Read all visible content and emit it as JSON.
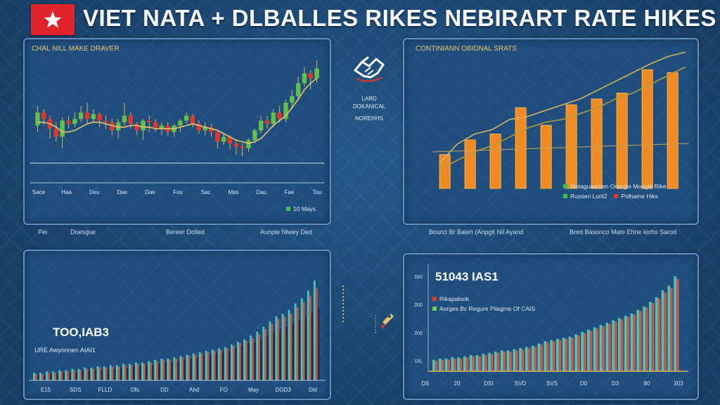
{
  "header": {
    "title": "VIET NATA + DLBALLES RIKES NEBIRART RATE HIKES",
    "flag_colors": {
      "bg": "#e0242b",
      "star": "#ffffff"
    }
  },
  "center_block": {
    "lines": [
      "LARD",
      "DOKANICAL",
      "NOREHHS"
    ]
  },
  "chart_data": [
    {
      "type": "candlestick",
      "title": "CHAL NILL MAKE DRAVER",
      "x_ticks": [
        "Sace",
        "Haa",
        "Deu",
        "Dae",
        "Dae",
        "Fos",
        "Sac",
        "Mas",
        "Dau",
        "Fae",
        "Tou"
      ],
      "legend": "10 Mays",
      "below_labels": [
        "Pei",
        "Doesgue",
        "Bereer Dolled",
        "Aunple Nlwey Ded"
      ],
      "candles": [
        {
          "o": 54,
          "c": 62,
          "h": 66,
          "l": 50
        },
        {
          "o": 62,
          "c": 58,
          "h": 64,
          "l": 54
        },
        {
          "o": 58,
          "c": 52,
          "h": 60,
          "l": 46
        },
        {
          "o": 52,
          "c": 47,
          "h": 56,
          "l": 44
        },
        {
          "o": 47,
          "c": 57,
          "h": 59,
          "l": 40
        },
        {
          "o": 57,
          "c": 55,
          "h": 60,
          "l": 52
        },
        {
          "o": 55,
          "c": 58,
          "h": 62,
          "l": 53
        },
        {
          "o": 58,
          "c": 62,
          "h": 66,
          "l": 56
        },
        {
          "o": 62,
          "c": 58,
          "h": 68,
          "l": 55
        },
        {
          "o": 58,
          "c": 61,
          "h": 64,
          "l": 56
        },
        {
          "o": 61,
          "c": 57,
          "h": 62,
          "l": 53
        },
        {
          "o": 57,
          "c": 56,
          "h": 60,
          "l": 52
        },
        {
          "o": 56,
          "c": 51,
          "h": 58,
          "l": 48
        },
        {
          "o": 51,
          "c": 56,
          "h": 58,
          "l": 46
        },
        {
          "o": 56,
          "c": 60,
          "h": 68,
          "l": 54
        },
        {
          "o": 60,
          "c": 55,
          "h": 62,
          "l": 52
        },
        {
          "o": 55,
          "c": 51,
          "h": 56,
          "l": 48
        },
        {
          "o": 51,
          "c": 57,
          "h": 58,
          "l": 45
        },
        {
          "o": 57,
          "c": 56,
          "h": 60,
          "l": 50
        },
        {
          "o": 56,
          "c": 52,
          "h": 58,
          "l": 50
        },
        {
          "o": 52,
          "c": 54,
          "h": 56,
          "l": 48
        },
        {
          "o": 54,
          "c": 50,
          "h": 56,
          "l": 48
        },
        {
          "o": 50,
          "c": 54,
          "h": 55,
          "l": 47
        },
        {
          "o": 54,
          "c": 57,
          "h": 58,
          "l": 50
        },
        {
          "o": 57,
          "c": 60,
          "h": 62,
          "l": 55
        },
        {
          "o": 60,
          "c": 55,
          "h": 61,
          "l": 53
        },
        {
          "o": 55,
          "c": 51,
          "h": 57,
          "l": 49
        },
        {
          "o": 51,
          "c": 53,
          "h": 56,
          "l": 48
        },
        {
          "o": 53,
          "c": 50,
          "h": 55,
          "l": 47
        },
        {
          "o": 50,
          "c": 44,
          "h": 51,
          "l": 40
        },
        {
          "o": 44,
          "c": 47,
          "h": 49,
          "l": 42
        },
        {
          "o": 47,
          "c": 43,
          "h": 48,
          "l": 39
        },
        {
          "o": 43,
          "c": 41,
          "h": 45,
          "l": 36
        },
        {
          "o": 41,
          "c": 40,
          "h": 43,
          "l": 35
        },
        {
          "o": 40,
          "c": 45,
          "h": 46,
          "l": 38
        },
        {
          "o": 45,
          "c": 51,
          "h": 52,
          "l": 43
        },
        {
          "o": 51,
          "c": 57,
          "h": 60,
          "l": 49
        },
        {
          "o": 57,
          "c": 55,
          "h": 60,
          "l": 52
        },
        {
          "o": 55,
          "c": 62,
          "h": 64,
          "l": 53
        },
        {
          "o": 62,
          "c": 58,
          "h": 66,
          "l": 56
        },
        {
          "o": 58,
          "c": 68,
          "h": 70,
          "l": 56
        },
        {
          "o": 68,
          "c": 72,
          "h": 76,
          "l": 64
        },
        {
          "o": 72,
          "c": 80,
          "h": 84,
          "l": 70
        },
        {
          "o": 80,
          "c": 86,
          "h": 90,
          "l": 78
        },
        {
          "o": 86,
          "c": 83,
          "h": 88,
          "l": 76
        },
        {
          "o": 83,
          "c": 89,
          "h": 94,
          "l": 80
        }
      ],
      "trend": [
        56,
        56,
        55,
        53,
        50,
        50,
        51,
        53,
        55,
        56,
        56,
        55,
        54,
        53,
        53,
        54,
        54,
        53,
        53,
        52,
        52,
        52,
        52,
        53,
        54,
        55,
        54,
        53,
        52,
        51,
        49,
        47,
        45,
        44,
        43,
        44,
        46,
        50,
        54,
        57,
        60,
        65,
        70,
        76,
        80,
        83
      ],
      "ylim": [
        30,
        100
      ]
    },
    {
      "type": "bar",
      "title": "CONTINIANN OBIDNAL SRATS",
      "values": [
        28,
        38,
        42,
        60,
        48,
        62,
        66,
        70,
        86,
        84
      ],
      "line": [
        22,
        35,
        42,
        45,
        52,
        54,
        58,
        62,
        66,
        72,
        78,
        84,
        90,
        95,
        98
      ],
      "line2": [
        18,
        24,
        30,
        34,
        40,
        46,
        50,
        52,
        56,
        60,
        66,
        70,
        76,
        82,
        88
      ],
      "ylim": [
        0,
        100
      ],
      "legend": [
        {
          "label": "Motaguaamen Onergie Moagle Rike",
          "color": "#3ac24b"
        },
        {
          "label": "Ruosen Lonl2",
          "color": "#3ac24b"
        },
        {
          "label": "Polhame Hiks",
          "color": "#e0362b"
        }
      ],
      "below_labels": [
        "Bourct Br Baleh (Anpgit Nil Ayand",
        "Bred Basonco Mate Ehne kichs Sarod"
      ]
    },
    {
      "type": "bar",
      "title": "",
      "headline": "TOO,IAB3",
      "subtitle": "URE Awyonnen AIAI1",
      "x_ticks": [
        "E15",
        "SDS",
        "FLLD",
        "Ofs",
        "DD",
        "Ahd",
        "FO",
        "May",
        "DGD3",
        "Did"
      ],
      "series": [
        {
          "name": "teal",
          "color": "#4fc4b0",
          "values": [
            6,
            6,
            7,
            7,
            8,
            8,
            9,
            9,
            10,
            10,
            11,
            11,
            12,
            12,
            13,
            13,
            14,
            14,
            15,
            16,
            17,
            17,
            18,
            19,
            20,
            21,
            22,
            23,
            24,
            25,
            26,
            28,
            30,
            32,
            35,
            38,
            42,
            46,
            50,
            52,
            55,
            60,
            64,
            70,
            78
          ]
        },
        {
          "name": "red",
          "color": "#c8584e",
          "values": [
            5,
            5,
            6,
            6,
            7,
            7,
            8,
            8,
            9,
            9,
            10,
            10,
            11,
            11,
            12,
            12,
            13,
            13,
            14,
            15,
            16,
            16,
            17,
            18,
            19,
            20,
            21,
            22,
            23,
            24,
            25,
            27,
            29,
            31,
            33,
            36,
            40,
            44,
            48,
            50,
            52,
            57,
            61,
            66,
            72
          ]
        },
        {
          "name": "dark",
          "color": "#20314a",
          "values": [
            4,
            4,
            5,
            5,
            6,
            6,
            6,
            7,
            7,
            8,
            8,
            9,
            9,
            10,
            10,
            11,
            11,
            12,
            12,
            13,
            14,
            14,
            15,
            16,
            17,
            18,
            19,
            20,
            21,
            22,
            23,
            25,
            27,
            29,
            30,
            32,
            35,
            38,
            40,
            42,
            44,
            47,
            50,
            53,
            56
          ]
        }
      ],
      "ylim": [
        0,
        90
      ]
    },
    {
      "type": "bar",
      "headline": "51043 IAS1",
      "x_ticks": [
        "DS",
        "20",
        "DSI",
        "SVD",
        "SVS",
        "D0",
        "D3",
        "80",
        "203"
      ],
      "y_ticks": [
        "1b0",
        "200",
        "200",
        "DS"
      ],
      "legend": [
        {
          "label": "Rikapalook",
          "color": "#e0362b"
        },
        {
          "label": "Aorges Bc Regure Pilagme Of CAIS",
          "color": "#6ccf55"
        }
      ],
      "series": [
        {
          "name": "teal",
          "color": "#4fc4b0",
          "values": [
            10,
            11,
            11,
            12,
            12,
            13,
            14,
            14,
            15,
            16,
            17,
            18,
            18,
            19,
            20,
            21,
            22,
            24,
            26,
            27,
            28,
            29,
            30,
            32,
            34,
            36,
            38,
            40,
            42,
            44,
            46,
            48,
            50,
            53,
            56,
            60,
            64,
            70,
            74,
            82
          ]
        },
        {
          "name": "red",
          "color": "#c8584e",
          "values": [
            9,
            10,
            10,
            11,
            11,
            12,
            13,
            13,
            14,
            15,
            16,
            17,
            17,
            18,
            19,
            20,
            21,
            23,
            25,
            26,
            27,
            28,
            29,
            31,
            33,
            35,
            37,
            39,
            41,
            43,
            45,
            47,
            49,
            52,
            55,
            59,
            63,
            68,
            72,
            80
          ]
        }
      ],
      "ylim": [
        0,
        90
      ]
    }
  ]
}
